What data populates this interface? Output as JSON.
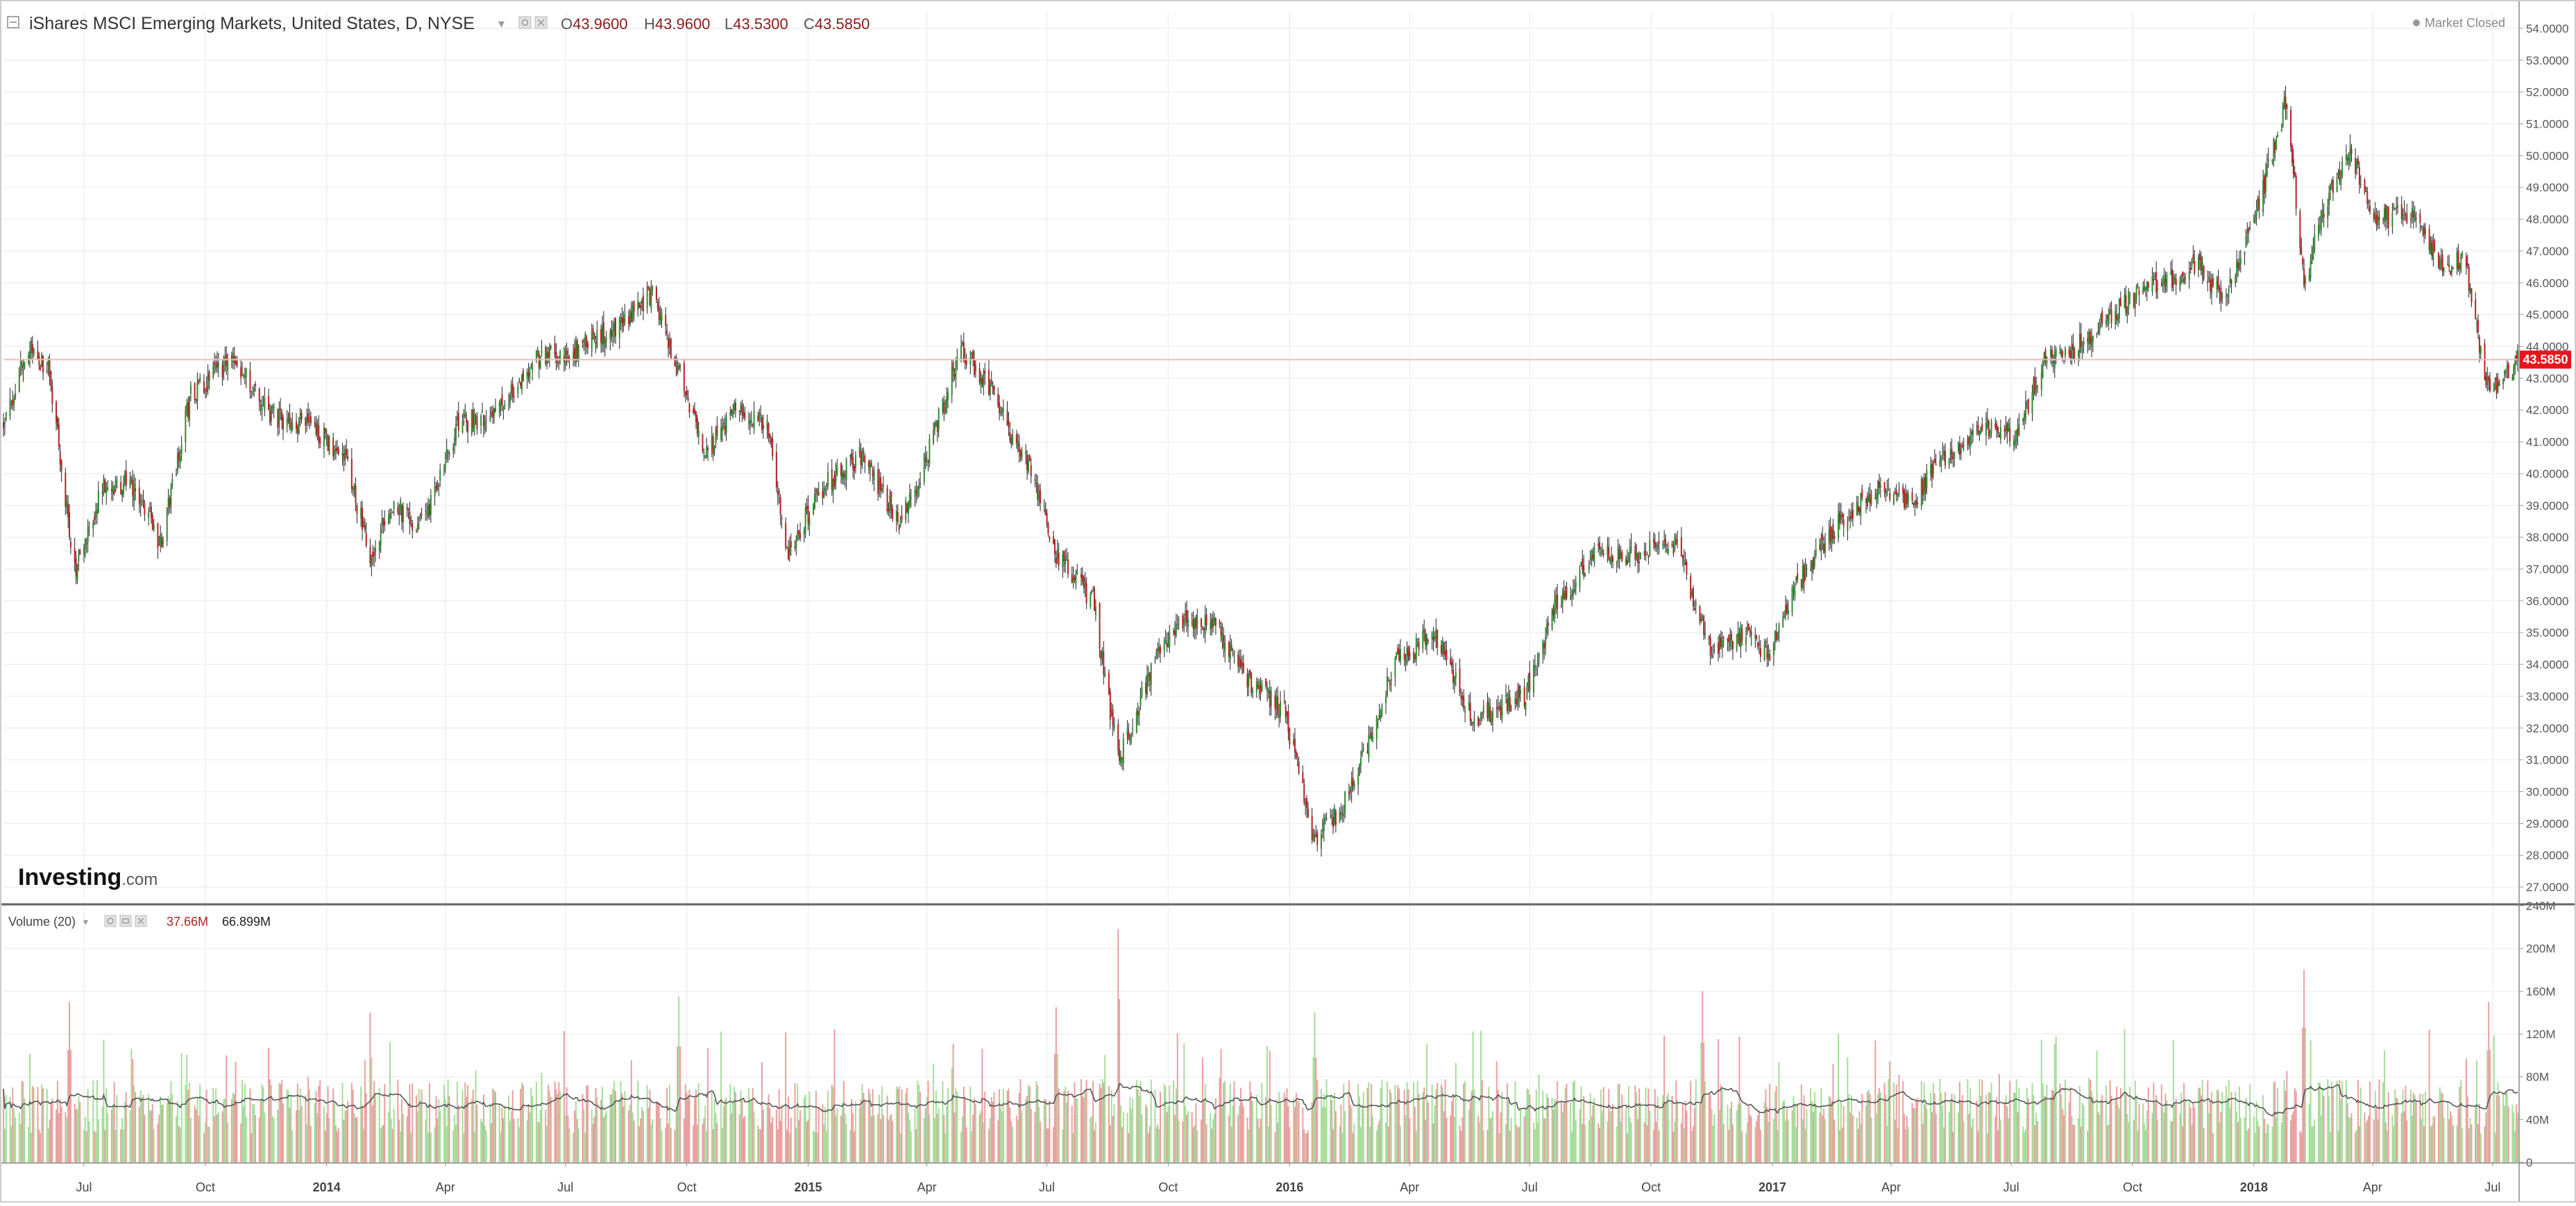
{
  "header": {
    "instrument": "iShares MSCI Emerging Markets, United States, D, NYSE",
    "ohlc": [
      {
        "label": "O",
        "value": "43.9600"
      },
      {
        "label": "H",
        "value": "43.9600"
      },
      {
        "label": "L",
        "value": "43.5300"
      },
      {
        "label": "C",
        "value": "43.5850"
      }
    ],
    "market_status": "Market Closed"
  },
  "watermark": {
    "brand": "Investing",
    "suffix": ".com"
  },
  "volume_header": {
    "label": "Volume (20)",
    "value": "37.66M",
    "ma_value": "66.899M"
  },
  "last_price_label": "43.5850",
  "colors": {
    "up": "#2e8b2e",
    "down": "#b22222",
    "volume_up": "#a6dd9a",
    "volume_down": "#e9a0a0",
    "price_line": "#f3b8b8",
    "price_badge": "#e8141e",
    "grid": "#efefef",
    "text": "#333333",
    "ohlc_value": "#8b1a1a"
  },
  "chart_data": [
    {
      "type": "candlestick",
      "title": "iShares MSCI Emerging Markets, United States, D, NYSE",
      "x_range": [
        "2013-05-01",
        "2018-07-20"
      ],
      "ylim": [
        26.5,
        54.5
      ],
      "y_ticks": [
        "54.0000",
        "53.0000",
        "52.0000",
        "51.0000",
        "50.0000",
        "49.0000",
        "48.0000",
        "47.0000",
        "46.0000",
        "45.0000",
        "44.0000",
        "43.0000",
        "42.0000",
        "41.0000",
        "40.0000",
        "39.0000",
        "38.0000",
        "37.0000",
        "36.0000",
        "35.0000",
        "34.0000",
        "33.0000",
        "32.0000",
        "31.0000",
        "30.0000",
        "29.0000",
        "28.0000",
        "27.0000"
      ],
      "x_ticks": [
        {
          "date": "2013-07-01",
          "label": "Jul"
        },
        {
          "date": "2013-10-01",
          "label": "Oct"
        },
        {
          "date": "2014-01-01",
          "label": "2014"
        },
        {
          "date": "2014-04-01",
          "label": "Apr"
        },
        {
          "date": "2014-07-01",
          "label": "Jul"
        },
        {
          "date": "2014-10-01",
          "label": "Oct"
        },
        {
          "date": "2015-01-01",
          "label": "2015"
        },
        {
          "date": "2015-04-01",
          "label": "Apr"
        },
        {
          "date": "2015-07-01",
          "label": "Jul"
        },
        {
          "date": "2015-10-01",
          "label": "Oct"
        },
        {
          "date": "2016-01-01",
          "label": "2016"
        },
        {
          "date": "2016-04-01",
          "label": "Apr"
        },
        {
          "date": "2016-07-01",
          "label": "Jul"
        },
        {
          "date": "2016-10-01",
          "label": "Oct"
        },
        {
          "date": "2017-01-01",
          "label": "2017"
        },
        {
          "date": "2017-04-01",
          "label": "Apr"
        },
        {
          "date": "2017-07-01",
          "label": "Jul"
        },
        {
          "date": "2017-10-01",
          "label": "Oct"
        },
        {
          "date": "2018-01-01",
          "label": "2018"
        },
        {
          "date": "2018-04-01",
          "label": "Apr"
        },
        {
          "date": "2018-07-01",
          "label": "Jul"
        }
      ],
      "last_close": 43.585,
      "approx_close_path": [
        {
          "date": "2013-05-01",
          "close": 41.5
        },
        {
          "date": "2013-05-20",
          "close": 44.0
        },
        {
          "date": "2013-06-05",
          "close": 43.2
        },
        {
          "date": "2013-06-24",
          "close": 36.9
        },
        {
          "date": "2013-07-15",
          "close": 39.5
        },
        {
          "date": "2013-08-05",
          "close": 39.8
        },
        {
          "date": "2013-08-28",
          "close": 37.8
        },
        {
          "date": "2013-09-20",
          "close": 42.5
        },
        {
          "date": "2013-10-22",
          "close": 43.6
        },
        {
          "date": "2013-11-20",
          "close": 41.8
        },
        {
          "date": "2013-12-20",
          "close": 41.5
        },
        {
          "date": "2014-01-15",
          "close": 40.5
        },
        {
          "date": "2014-02-03",
          "close": 37.5
        },
        {
          "date": "2014-02-20",
          "close": 39.0
        },
        {
          "date": "2014-03-15",
          "close": 38.3
        },
        {
          "date": "2014-04-10",
          "close": 41.5
        },
        {
          "date": "2014-05-10",
          "close": 42.0
        },
        {
          "date": "2014-06-10",
          "close": 43.6
        },
        {
          "date": "2014-07-10",
          "close": 43.9
        },
        {
          "date": "2014-08-10",
          "close": 44.7
        },
        {
          "date": "2014-09-05",
          "close": 45.7
        },
        {
          "date": "2014-09-25",
          "close": 43.2
        },
        {
          "date": "2014-10-15",
          "close": 40.5
        },
        {
          "date": "2014-11-05",
          "close": 42.0
        },
        {
          "date": "2014-12-01",
          "close": 41.5
        },
        {
          "date": "2014-12-16",
          "close": 37.5
        },
        {
          "date": "2015-01-10",
          "close": 39.5
        },
        {
          "date": "2015-02-10",
          "close": 40.6
        },
        {
          "date": "2015-03-11",
          "close": 38.5
        },
        {
          "date": "2015-04-01",
          "close": 40.5
        },
        {
          "date": "2015-04-27",
          "close": 44.0
        },
        {
          "date": "2015-05-20",
          "close": 42.5
        },
        {
          "date": "2015-06-20",
          "close": 40.0
        },
        {
          "date": "2015-07-08",
          "close": 37.5
        },
        {
          "date": "2015-08-05",
          "close": 36.0
        },
        {
          "date": "2015-08-24",
          "close": 31.0
        },
        {
          "date": "2015-09-15",
          "close": 33.5
        },
        {
          "date": "2015-10-10",
          "close": 35.5
        },
        {
          "date": "2015-11-05",
          "close": 35.2
        },
        {
          "date": "2015-12-01",
          "close": 33.5
        },
        {
          "date": "2015-12-28",
          "close": 32.5
        },
        {
          "date": "2016-01-20",
          "close": 28.5
        },
        {
          "date": "2016-02-10",
          "close": 29.5
        },
        {
          "date": "2016-03-01",
          "close": 31.5
        },
        {
          "date": "2016-03-20",
          "close": 34.0
        },
        {
          "date": "2016-04-20",
          "close": 35.0
        },
        {
          "date": "2016-05-20",
          "close": 32.2
        },
        {
          "date": "2016-06-27",
          "close": 33.0
        },
        {
          "date": "2016-07-20",
          "close": 35.8
        },
        {
          "date": "2016-08-20",
          "close": 37.5
        },
        {
          "date": "2016-09-20",
          "close": 37.5
        },
        {
          "date": "2016-10-20",
          "close": 37.8
        },
        {
          "date": "2016-11-15",
          "close": 34.5
        },
        {
          "date": "2016-12-15",
          "close": 35.0
        },
        {
          "date": "2016-12-28",
          "close": 34.3
        },
        {
          "date": "2017-01-20",
          "close": 36.5
        },
        {
          "date": "2017-02-20",
          "close": 38.5
        },
        {
          "date": "2017-03-20",
          "close": 39.5
        },
        {
          "date": "2017-04-15",
          "close": 39.0
        },
        {
          "date": "2017-05-10",
          "close": 40.5
        },
        {
          "date": "2017-06-10",
          "close": 41.5
        },
        {
          "date": "2017-07-05",
          "close": 41.2
        },
        {
          "date": "2017-07-25",
          "close": 43.5
        },
        {
          "date": "2017-08-20",
          "close": 44.0
        },
        {
          "date": "2017-09-20",
          "close": 45.2
        },
        {
          "date": "2017-10-20",
          "close": 46.0
        },
        {
          "date": "2017-11-20",
          "close": 46.5
        },
        {
          "date": "2017-12-10",
          "close": 45.5
        },
        {
          "date": "2018-01-05",
          "close": 48.5
        },
        {
          "date": "2018-01-26",
          "close": 51.8
        },
        {
          "date": "2018-02-08",
          "close": 46.0
        },
        {
          "date": "2018-02-28",
          "close": 49.0
        },
        {
          "date": "2018-03-15",
          "close": 50.0
        },
        {
          "date": "2018-04-05",
          "close": 48.0
        },
        {
          "date": "2018-04-30",
          "close": 48.2
        },
        {
          "date": "2018-05-25",
          "close": 46.5
        },
        {
          "date": "2018-06-10",
          "close": 46.8
        },
        {
          "date": "2018-06-25",
          "close": 43.0
        },
        {
          "date": "2018-07-05",
          "close": 42.6
        },
        {
          "date": "2018-07-20",
          "close": 43.585
        }
      ]
    },
    {
      "type": "bar",
      "title": "Volume (20)",
      "ylim": [
        0,
        240
      ],
      "y_unit": "M",
      "y_ticks": [
        "240M",
        "200M",
        "160M",
        "120M",
        "80M",
        "40M",
        "0"
      ],
      "typical_volume_millions": 60,
      "notable_spikes": [
        {
          "date": "2013-06-20",
          "value": 150
        },
        {
          "date": "2014-02-03",
          "value": 140
        },
        {
          "date": "2014-09-25",
          "value": 155
        },
        {
          "date": "2015-08-24",
          "value": 218
        },
        {
          "date": "2015-07-08",
          "value": 145
        },
        {
          "date": "2016-01-20",
          "value": 140
        },
        {
          "date": "2016-11-09",
          "value": 160
        },
        {
          "date": "2017-04-01",
          "value": 135
        },
        {
          "date": "2018-02-08",
          "value": 180
        },
        {
          "date": "2018-06-28",
          "value": 150
        }
      ]
    }
  ]
}
